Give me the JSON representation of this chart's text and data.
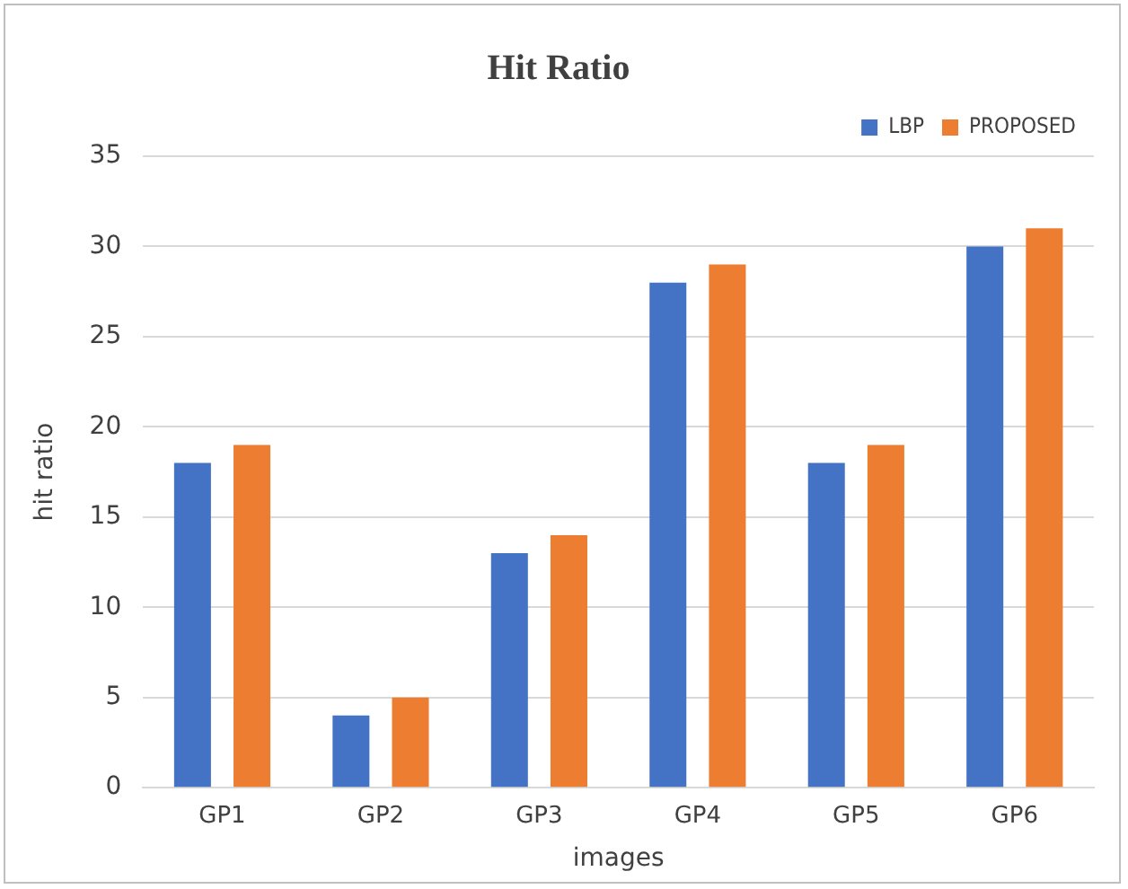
{
  "chart_data": {
    "type": "bar",
    "title": "Hit Ratio",
    "xlabel": "images",
    "ylabel": "hit ratio",
    "categories": [
      "GP1",
      "GP2",
      "GP3",
      "GP4",
      "GP5",
      "GP6"
    ],
    "series": [
      {
        "name": "LBP",
        "color": "#4472c4",
        "values": [
          18,
          4,
          13,
          28,
          18,
          30
        ]
      },
      {
        "name": "PROPOSED",
        "color": "#ed7d31",
        "values": [
          19,
          5,
          14,
          29,
          19,
          31
        ]
      }
    ],
    "ylim": [
      0,
      35
    ],
    "yticks": [
      0,
      5,
      10,
      15,
      20,
      25,
      30,
      35
    ],
    "grid": "y",
    "legend": "top right"
  }
}
